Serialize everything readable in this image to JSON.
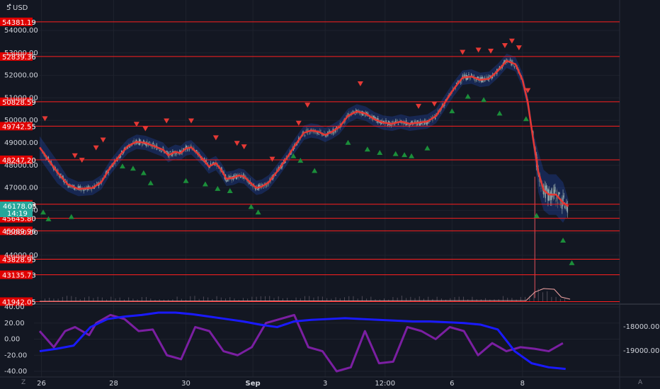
{
  "header": {
    "currency": "USD"
  },
  "corner_buttons": {
    "left": "Z",
    "right": "A"
  },
  "chart_data": [
    {
      "type": "line",
      "pane": "price",
      "currency": "USD",
      "y_ticks": [
        "54000.00",
        "53000.00",
        "52000.00",
        "51000.00",
        "50000.00",
        "49000.00",
        "48000.00",
        "47000.00",
        "46000.00",
        "45000.00",
        "44000.00"
      ],
      "ylim": [
        41700,
        55000
      ],
      "x_labels": [
        "26",
        "28",
        "30",
        "Sep",
        "3",
        "12:00",
        "6",
        "8"
      ],
      "grid": true,
      "horizontal_levels": [
        {
          "label": "54381.19",
          "value": 54381.19
        },
        {
          "label": "52839.36",
          "value": 52839.36
        },
        {
          "label": "50828.59",
          "value": 50828.59
        },
        {
          "label": "49742.55",
          "value": 49742.55
        },
        {
          "label": "48247.20",
          "value": 48247.2
        },
        {
          "label": "46270.89",
          "value": 46270.89
        },
        {
          "label": "45645.80",
          "value": 45645.8
        },
        {
          "label": "45089.96",
          "value": 45089.96
        },
        {
          "label": "43828.95",
          "value": 43828.95
        },
        {
          "label": "43135.73",
          "value": 43135.73
        },
        {
          "label": "41942.05",
          "value": 41942.05
        }
      ],
      "current_price": {
        "label": "46178.05",
        "countdown": "14:19",
        "value": 46178.05
      },
      "moving_average": [
        [
          0,
          48800
        ],
        [
          1,
          47700
        ],
        [
          1.6,
          47150
        ],
        [
          2.2,
          46950
        ],
        [
          3,
          47000
        ],
        [
          3.5,
          47250
        ],
        [
          4,
          47900
        ],
        [
          4.6,
          48500
        ],
        [
          5,
          48850
        ],
        [
          5.5,
          49050
        ],
        [
          6,
          49000
        ],
        [
          6.5,
          48850
        ],
        [
          7,
          48700
        ],
        [
          7.3,
          48450
        ],
        [
          7.7,
          48600
        ],
        [
          8,
          48550
        ],
        [
          8.3,
          48750
        ],
        [
          8.6,
          48800
        ],
        [
          9,
          48500
        ],
        [
          9.3,
          48250
        ],
        [
          9.6,
          47950
        ],
        [
          10,
          48100
        ],
        [
          10.3,
          47800
        ],
        [
          10.6,
          47400
        ],
        [
          11,
          47450
        ],
        [
          11.3,
          47550
        ],
        [
          11.6,
          47500
        ],
        [
          12,
          47200
        ],
        [
          12.3,
          47000
        ],
        [
          12.6,
          47050
        ],
        [
          13,
          47250
        ],
        [
          13.5,
          47750
        ],
        [
          14,
          48300
        ],
        [
          14.5,
          48900
        ],
        [
          15,
          49450
        ],
        [
          15.4,
          49550
        ],
        [
          15.8,
          49500
        ],
        [
          16.2,
          49350
        ],
        [
          16.6,
          49500
        ],
        [
          17,
          49700
        ],
        [
          17.5,
          50200
        ],
        [
          18,
          50400
        ],
        [
          18.5,
          50300
        ],
        [
          19,
          50050
        ],
        [
          19.5,
          49900
        ],
        [
          20,
          49850
        ],
        [
          20.5,
          49950
        ],
        [
          21,
          49850
        ],
        [
          21.5,
          49900
        ],
        [
          22,
          49950
        ],
        [
          22.5,
          50200
        ],
        [
          23,
          50800
        ],
        [
          23.5,
          51400
        ],
        [
          24,
          51900
        ],
        [
          24.5,
          51950
        ],
        [
          25,
          51800
        ],
        [
          25.5,
          51850
        ],
        [
          26,
          52200
        ],
        [
          26.5,
          52650
        ],
        [
          27,
          52500
        ],
        [
          27.4,
          51800
        ],
        [
          27.7,
          50800
        ],
        [
          28,
          49200
        ],
        [
          28.3,
          47700
        ],
        [
          28.6,
          46900
        ],
        [
          28.9,
          46700
        ],
        [
          29.3,
          46700
        ],
        [
          29.7,
          46350
        ],
        [
          30,
          46180
        ]
      ],
      "markers": {
        "sell": [
          [
            0.3,
            49650
          ],
          [
            2.0,
            48000
          ],
          [
            2.4,
            47800
          ],
          [
            3.2,
            48350
          ],
          [
            3.6,
            48700
          ],
          [
            5.5,
            49400
          ],
          [
            6,
            49200
          ],
          [
            7.2,
            49550
          ],
          [
            8.6,
            49550
          ],
          [
            10,
            48800
          ],
          [
            11.2,
            48550
          ],
          [
            11.6,
            48400
          ],
          [
            13.2,
            47850
          ],
          [
            14.7,
            49450
          ],
          [
            15.2,
            50250
          ],
          [
            18.2,
            51200
          ],
          [
            21.5,
            50200
          ],
          [
            22.4,
            50300
          ],
          [
            24.0,
            52600
          ],
          [
            24.9,
            52700
          ],
          [
            25.6,
            52650
          ],
          [
            26.4,
            52900
          ],
          [
            26.8,
            53100
          ],
          [
            27.2,
            52800
          ],
          [
            27.7,
            50900
          ]
        ],
        "buy": [
          [
            0.2,
            46350
          ],
          [
            0.5,
            46050
          ],
          [
            1.8,
            46150
          ],
          [
            4.7,
            48400
          ],
          [
            5.3,
            48300
          ],
          [
            5.9,
            48100
          ],
          [
            6.3,
            47650
          ],
          [
            8.3,
            47750
          ],
          [
            9.4,
            47600
          ],
          [
            10.1,
            47400
          ],
          [
            10.8,
            47300
          ],
          [
            12.0,
            46600
          ],
          [
            12.4,
            46350
          ],
          [
            14.4,
            48850
          ],
          [
            14.8,
            48650
          ],
          [
            15.6,
            48200
          ],
          [
            17.5,
            49450
          ],
          [
            18.6,
            49150
          ],
          [
            19.3,
            49000
          ],
          [
            20.2,
            48950
          ],
          [
            20.7,
            48900
          ],
          [
            21.1,
            48850
          ],
          [
            22.0,
            49200
          ],
          [
            23.4,
            50850
          ],
          [
            24.3,
            51500
          ],
          [
            25.2,
            51350
          ],
          [
            26.1,
            50750
          ],
          [
            27.6,
            50500
          ],
          [
            28.2,
            46200
          ],
          [
            29.7,
            45100
          ],
          [
            30.2,
            44100
          ]
        ]
      }
    },
    {
      "type": "line",
      "pane": "oscillator",
      "y_ticks": [
        "40.00",
        "20.00",
        "0.00",
        "-20.00",
        "-40.00"
      ],
      "ylim": [
        -45,
        42
      ],
      "right_ticks": [
        "-18000.00",
        "-19000.00"
      ],
      "series": [
        {
          "color": "#7b1fa2",
          "values": [
            [
              0,
              10
            ],
            [
              1,
              -10
            ],
            [
              1.8,
              10
            ],
            [
              2.5,
              15
            ],
            [
              3.5,
              5
            ],
            [
              4,
              20
            ],
            [
              5,
              30
            ],
            [
              6,
              25
            ],
            [
              7,
              10
            ],
            [
              8,
              12
            ],
            [
              9,
              -20
            ],
            [
              10,
              -25
            ],
            [
              11,
              15
            ],
            [
              12,
              10
            ],
            [
              13,
              -15
            ],
            [
              14,
              -20
            ],
            [
              15,
              -10
            ],
            [
              16,
              20
            ],
            [
              17,
              25
            ],
            [
              18,
              30
            ],
            [
              19,
              -10
            ],
            [
              20,
              -15
            ],
            [
              21,
              -40
            ],
            [
              22,
              -35
            ],
            [
              23,
              10
            ],
            [
              24,
              -30
            ],
            [
              25,
              -28
            ],
            [
              26,
              15
            ],
            [
              27,
              10
            ],
            [
              28,
              0
            ],
            [
              29,
              15
            ],
            [
              30,
              10
            ],
            [
              31,
              -20
            ],
            [
              32,
              -5
            ],
            [
              33,
              -15
            ],
            [
              34,
              -10
            ],
            [
              35,
              -12
            ],
            [
              36,
              -15
            ],
            [
              37,
              -5
            ]
          ]
        },
        {
          "color": "#1a1aff",
          "values": [
            [
              0,
              -15
            ],
            [
              1,
              -12
            ],
            [
              2,
              -8
            ],
            [
              3,
              15
            ],
            [
              4,
              25
            ],
            [
              5,
              28
            ],
            [
              6,
              30
            ],
            [
              7,
              33
            ],
            [
              8,
              33
            ],
            [
              9,
              31
            ],
            [
              10,
              28
            ],
            [
              11,
              25
            ],
            [
              12,
              22
            ],
            [
              13,
              18
            ],
            [
              14,
              15
            ],
            [
              15,
              22
            ],
            [
              16,
              24
            ],
            [
              17,
              25
            ],
            [
              18,
              26
            ],
            [
              19,
              25
            ],
            [
              20,
              24
            ],
            [
              21,
              23
            ],
            [
              22,
              22
            ],
            [
              23,
              22
            ],
            [
              24,
              21
            ],
            [
              25,
              20
            ],
            [
              26,
              18
            ],
            [
              27,
              12
            ],
            [
              28,
              -15
            ],
            [
              29,
              -30
            ],
            [
              30,
              -35
            ],
            [
              31,
              -37
            ]
          ]
        }
      ]
    }
  ]
}
